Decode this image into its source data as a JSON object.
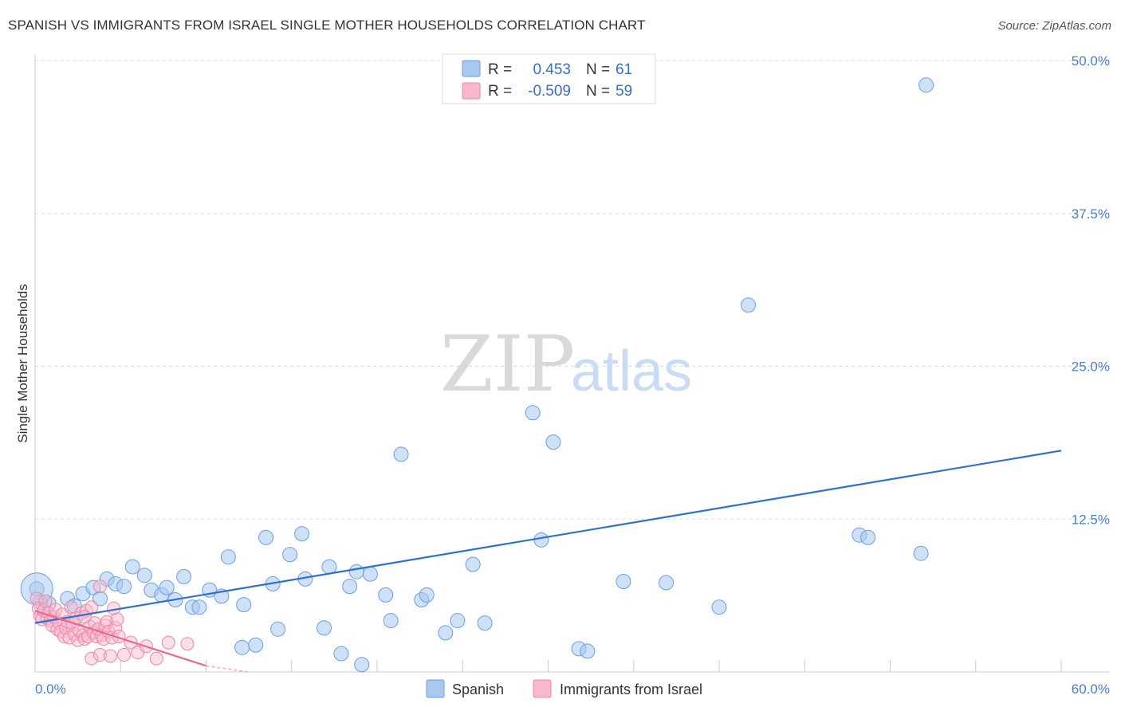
{
  "header": {
    "title": "SPANISH VS IMMIGRANTS FROM ISRAEL SINGLE MOTHER HOUSEHOLDS CORRELATION CHART",
    "source": "Source: ZipAtlas.com"
  },
  "watermark": {
    "zip": "ZIP",
    "atlas": "atlas"
  },
  "legend": {
    "r_label": "R =",
    "n_label": "N =",
    "rows": [
      {
        "r": "0.453",
        "n": "61",
        "color": "#a8c8f0",
        "stroke": "#6a9fe0"
      },
      {
        "r": "-0.509",
        "n": "59",
        "color": "#f7b8cb",
        "stroke": "#ef87a6"
      }
    ]
  },
  "bottom_legend": {
    "items": [
      {
        "label": "Spanish",
        "color": "#a8c8f0",
        "stroke": "#6a9fe0"
      },
      {
        "label": "Immigrants from Israel",
        "color": "#f7b8cb",
        "stroke": "#ef87a6"
      }
    ]
  },
  "chart_data": {
    "type": "scatter",
    "title": "SPANISH VS IMMIGRANTS FROM ISRAEL SINGLE MOTHER HOUSEHOLDS CORRELATION CHART",
    "xlabel": "",
    "ylabel": "Single Mother Households",
    "xlim": [
      0,
      60
    ],
    "ylim": [
      0,
      50
    ],
    "x_tick_labels": [
      "0.0%",
      "60.0%"
    ],
    "y_ticks": [
      12.5,
      25.0,
      37.5,
      50.0
    ],
    "y_tick_labels": [
      "12.5%",
      "25.0%",
      "37.5%",
      "50.0%"
    ],
    "grid": true,
    "series": [
      {
        "name": "Spanish",
        "color": "#a8c8f0",
        "stroke": "#6a9fe0",
        "points": [
          [
            0.1,
            6.8
          ],
          [
            0.8,
            5.6
          ],
          [
            1.9,
            6.0
          ],
          [
            2.3,
            5.4
          ],
          [
            2.8,
            6.4
          ],
          [
            3.4,
            6.9
          ],
          [
            3.8,
            6.0
          ],
          [
            4.2,
            7.6
          ],
          [
            4.7,
            7.2
          ],
          [
            5.2,
            7.0
          ],
          [
            5.7,
            8.6
          ],
          [
            6.4,
            7.9
          ],
          [
            6.8,
            6.7
          ],
          [
            7.4,
            6.3
          ],
          [
            7.7,
            6.9
          ],
          [
            8.2,
            5.9
          ],
          [
            8.7,
            7.8
          ],
          [
            9.2,
            5.3
          ],
          [
            9.6,
            5.3
          ],
          [
            10.2,
            6.7
          ],
          [
            10.9,
            6.2
          ],
          [
            11.3,
            9.4
          ],
          [
            12.1,
            2.0
          ],
          [
            12.2,
            5.5
          ],
          [
            12.9,
            2.2
          ],
          [
            13.5,
            11.0
          ],
          [
            13.9,
            7.2
          ],
          [
            14.2,
            3.5
          ],
          [
            14.9,
            9.6
          ],
          [
            15.6,
            11.3
          ],
          [
            15.8,
            7.6
          ],
          [
            16.9,
            3.6
          ],
          [
            17.2,
            8.6
          ],
          [
            17.9,
            1.5
          ],
          [
            18.4,
            7.0
          ],
          [
            18.8,
            8.2
          ],
          [
            19.1,
            0.6
          ],
          [
            19.6,
            8.0
          ],
          [
            20.5,
            6.3
          ],
          [
            20.8,
            4.2
          ],
          [
            21.4,
            17.8
          ],
          [
            22.6,
            5.9
          ],
          [
            22.9,
            6.3
          ],
          [
            24.0,
            3.2
          ],
          [
            24.7,
            4.2
          ],
          [
            25.6,
            8.8
          ],
          [
            26.3,
            4.0
          ],
          [
            29.1,
            21.2
          ],
          [
            29.6,
            10.8
          ],
          [
            30.3,
            18.8
          ],
          [
            31.8,
            1.9
          ],
          [
            32.3,
            1.7
          ],
          [
            34.4,
            7.4
          ],
          [
            36.9,
            7.3
          ],
          [
            40.0,
            5.3
          ],
          [
            41.7,
            30.0
          ],
          [
            48.2,
            11.2
          ],
          [
            48.7,
            11.0
          ],
          [
            51.8,
            9.7
          ],
          [
            52.1,
            48.0
          ],
          [
            0.3,
            5.7
          ]
        ],
        "trendline": {
          "x": [
            0.0,
            60.0
          ],
          "y": [
            4.0,
            18.1
          ]
        }
      },
      {
        "name": "Immigrants from Israel",
        "color": "#f7b8cb",
        "stroke": "#ef87a6",
        "points": [
          [
            0.1,
            6.0
          ],
          [
            0.2,
            5.2
          ],
          [
            0.3,
            4.6
          ],
          [
            0.4,
            4.3
          ],
          [
            0.5,
            5.0
          ],
          [
            0.6,
            5.8
          ],
          [
            0.7,
            4.4
          ],
          [
            0.8,
            4.8
          ],
          [
            0.9,
            4.2
          ],
          [
            1.0,
            3.8
          ],
          [
            1.1,
            4.5
          ],
          [
            1.2,
            5.1
          ],
          [
            1.3,
            3.5
          ],
          [
            1.4,
            4.0
          ],
          [
            1.5,
            3.3
          ],
          [
            1.6,
            4.7
          ],
          [
            1.7,
            2.9
          ],
          [
            1.8,
            3.6
          ],
          [
            1.9,
            4.1
          ],
          [
            2.0,
            2.8
          ],
          [
            2.1,
            5.3
          ],
          [
            2.2,
            3.9
          ],
          [
            2.3,
            3.1
          ],
          [
            2.4,
            4.4
          ],
          [
            2.5,
            2.6
          ],
          [
            2.6,
            3.4
          ],
          [
            2.7,
            4.8
          ],
          [
            2.8,
            3.0
          ],
          [
            2.9,
            2.7
          ],
          [
            3.0,
            5.0
          ],
          [
            3.1,
            2.9
          ],
          [
            3.2,
            3.7
          ],
          [
            3.3,
            1.1
          ],
          [
            3.4,
            3.2
          ],
          [
            3.5,
            4.0
          ],
          [
            3.6,
            2.9
          ],
          [
            3.7,
            3.5
          ],
          [
            3.8,
            1.4
          ],
          [
            3.9,
            3.0
          ],
          [
            4.0,
            2.7
          ],
          [
            4.1,
            3.8
          ],
          [
            4.2,
            4.1
          ],
          [
            4.3,
            3.3
          ],
          [
            4.4,
            1.3
          ],
          [
            4.5,
            2.8
          ],
          [
            4.6,
            5.2
          ],
          [
            4.7,
            3.6
          ],
          [
            4.8,
            4.3
          ],
          [
            4.9,
            2.9
          ],
          [
            5.2,
            1.4
          ],
          [
            5.6,
            2.4
          ],
          [
            6.0,
            1.6
          ],
          [
            6.5,
            2.1
          ],
          [
            7.1,
            1.1
          ],
          [
            7.8,
            2.4
          ],
          [
            8.9,
            2.3
          ],
          [
            3.8,
            7.0
          ],
          [
            3.3,
            5.3
          ],
          [
            2.9,
            4.5
          ]
        ],
        "trendline": {
          "x": [
            0.0,
            10.0
          ],
          "y": [
            5.0,
            0.5
          ]
        },
        "trendline_dashed": {
          "x": [
            10.0,
            12.5
          ],
          "y": [
            0.5,
            -0.7
          ]
        }
      }
    ]
  }
}
